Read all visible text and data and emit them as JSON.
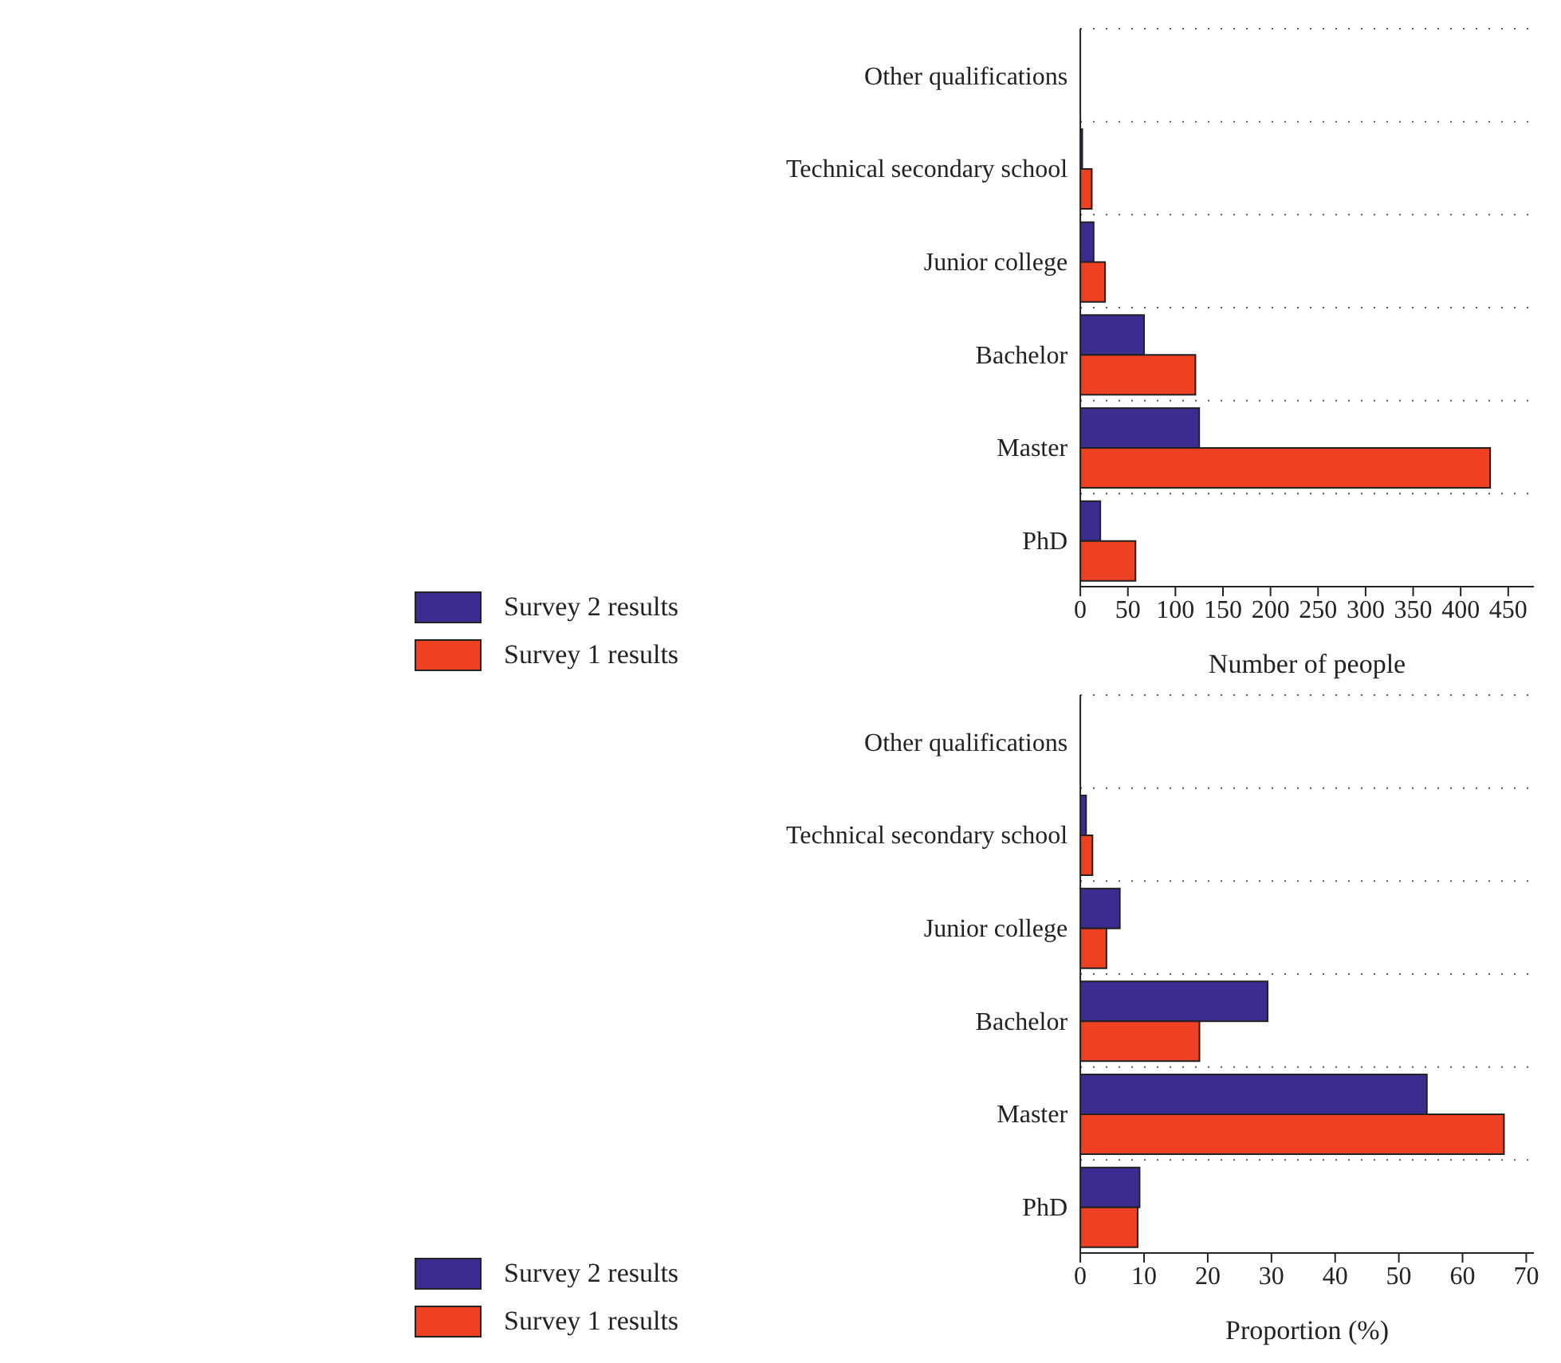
{
  "chart_data": [
    {
      "type": "bar",
      "orientation": "horizontal",
      "xlabel": "Number of people",
      "categories": [
        "Other qualifications",
        "Technical secondary school",
        "Junior college",
        "Bachelor",
        "Master",
        "PhD"
      ],
      "series": [
        {
          "name": "Survey 2 results",
          "color": "#3a2d8f",
          "values": [
            0,
            2,
            14,
            67,
            125,
            21
          ]
        },
        {
          "name": "Survey 1 results",
          "color": "#ee4123",
          "values": [
            0,
            12,
            26,
            121,
            431,
            58
          ]
        }
      ],
      "xlim": [
        0,
        477
      ],
      "xticks": [
        0,
        50,
        100,
        150,
        200,
        250,
        300,
        350,
        400,
        450
      ],
      "grid": "y",
      "legend": "bottom"
    },
    {
      "type": "bar",
      "orientation": "horizontal",
      "xlabel": "Proportion (%)",
      "categories": [
        "Other qualifications",
        "Technical secondary school",
        "Junior college",
        "Bachelor",
        "Master",
        "PhD"
      ],
      "series": [
        {
          "name": "Survey 2 results",
          "color": "#3a2d8f",
          "values": [
            0,
            0.9,
            6.2,
            29.4,
            54.4,
            9.3
          ]
        },
        {
          "name": "Survey 1 results",
          "color": "#ee4123",
          "values": [
            0,
            1.9,
            4.1,
            18.7,
            66.5,
            9.0
          ]
        }
      ],
      "xlim": [
        0,
        71.2
      ],
      "xticks": [
        0,
        10,
        20,
        30,
        40,
        50,
        60,
        70
      ],
      "grid": "y",
      "legend": "bottom"
    }
  ]
}
